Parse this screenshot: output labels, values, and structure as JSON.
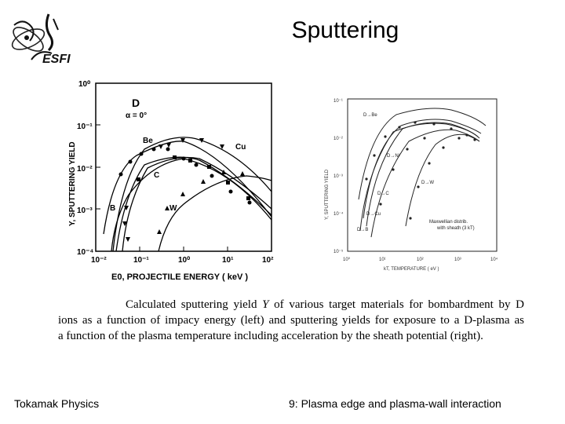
{
  "slide": {
    "title": "Sputtering",
    "caption": {
      "line1_pre": "Calculated sputtering yield ",
      "line1_var": "Y",
      "line1_post": " of various target materials for bombardment by D",
      "line2": "ions as a function of impacy energy (left) and sputtering yields for exposure to a D-plasma as",
      "line3": "a function of the plasma temperature including acceleration by the sheath potential (right)."
    },
    "footer_left": "Tokamak Physics",
    "footer_right": "9: Plasma edge and plasma-wall interaction"
  },
  "logo": {
    "text": "ESFI"
  },
  "left_figure": {
    "ylabel": "Y, SPUTTERING YIELD",
    "xlabel": "E0, PROJECTILE ENERGY  ( keV )",
    "y_ticks": [
      "10⁰",
      "10⁻¹",
      "10⁻²",
      "10⁻³",
      "10⁻⁴"
    ],
    "x_ticks": [
      "10⁻²",
      "10⁻¹",
      "10⁰",
      "10¹",
      "10²"
    ],
    "projectile": "D",
    "angle": "α = 0°",
    "curve_labels": [
      "Be",
      "Cu",
      "C",
      "B",
      "W"
    ]
  },
  "right_figure": {
    "ylabel": "Y, SPUTTERING YIELD",
    "xlabel": "kT, TEMPERATURE  ( eV )",
    "y_ticks": [
      "10⁻¹",
      "10⁻²",
      "10⁻³",
      "10⁻⁴",
      "10⁻⁵"
    ],
    "x_ticks": [
      "10⁰",
      "10¹",
      "10²",
      "10³",
      "10⁴"
    ],
    "curve_labels": [
      "D→Be",
      "D→Ni",
      "D→C",
      "D→Cu",
      "D→W",
      "D→B"
    ],
    "legend_line1": "Maxwellian distrib.",
    "legend_line2": "with sheath (3 kT)"
  }
}
